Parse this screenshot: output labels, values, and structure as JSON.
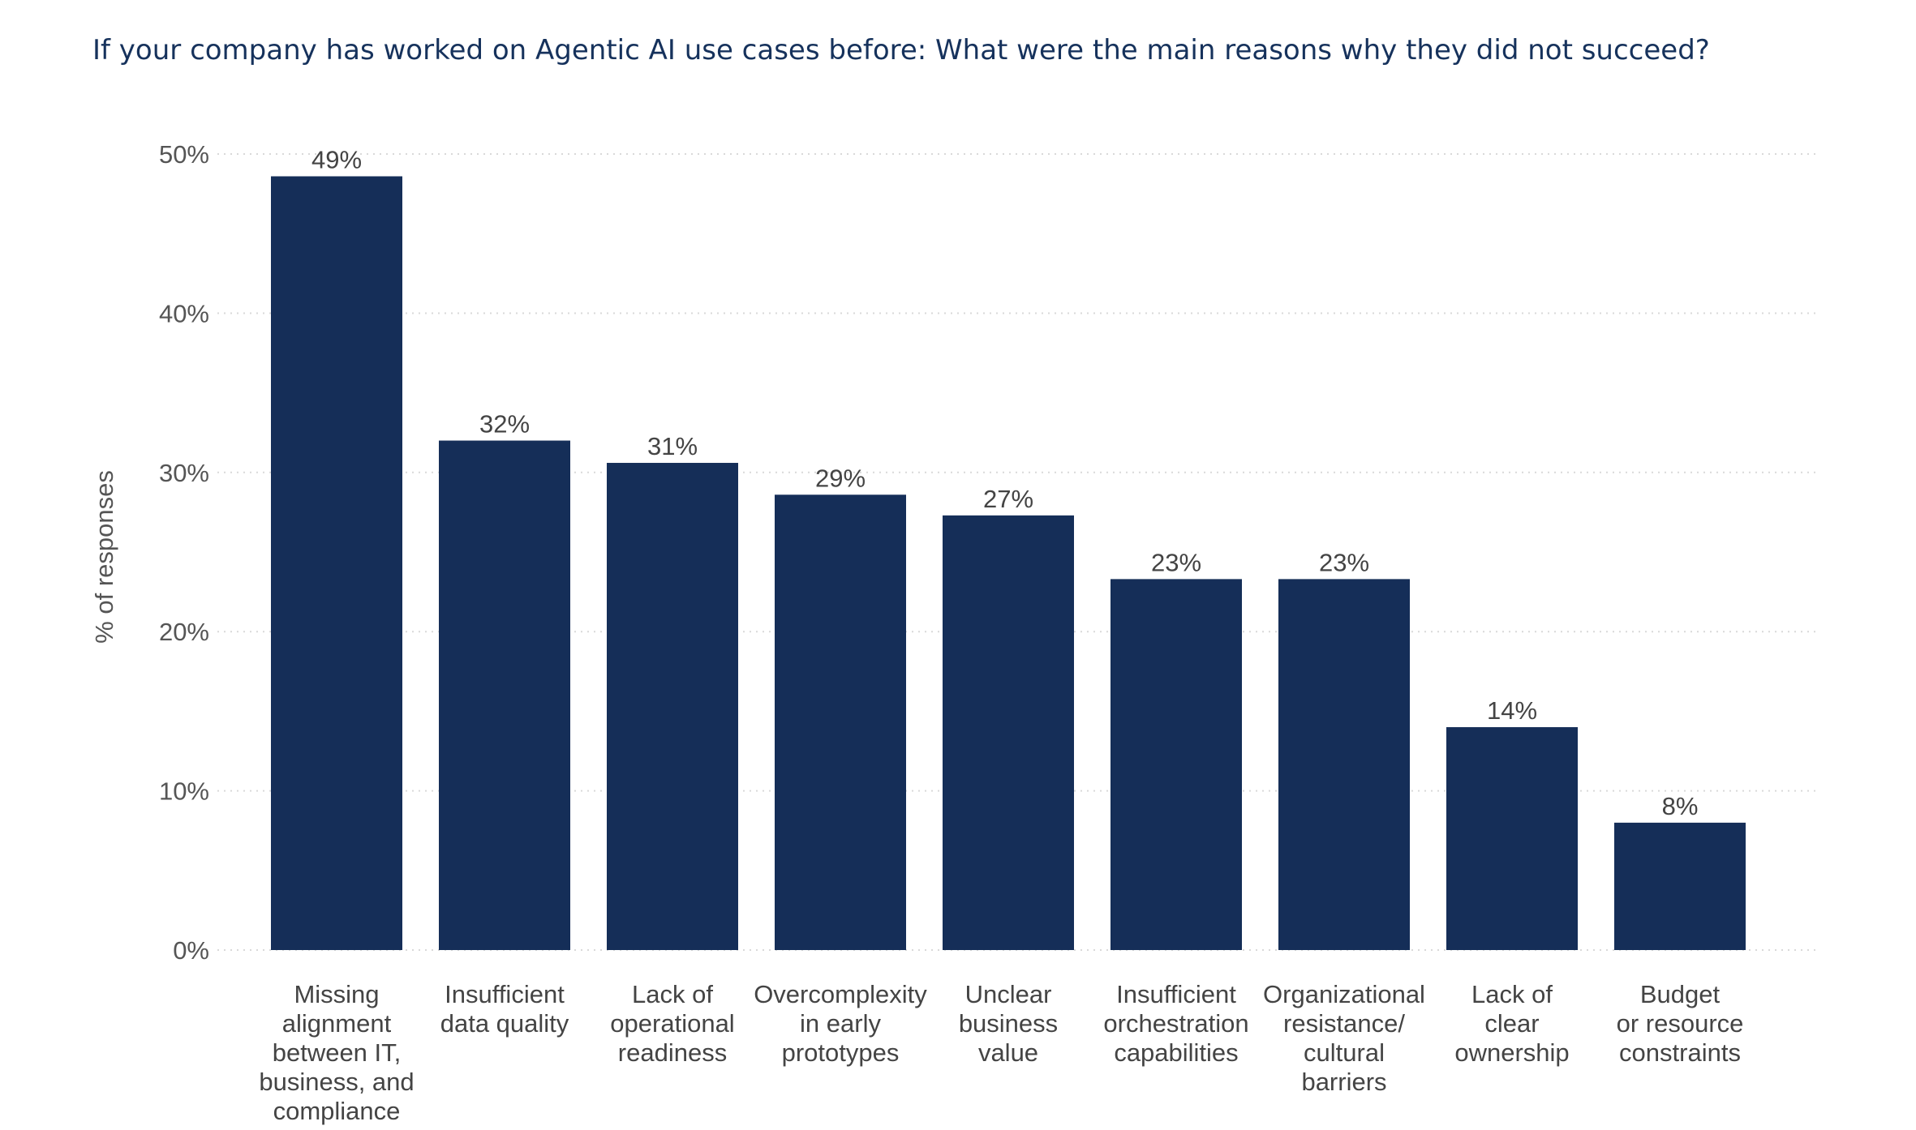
{
  "chart_data": {
    "type": "bar",
    "title": "If your company has worked on Agentic AI use cases before: What were the main reasons why they did not succeed?",
    "xlabel": "",
    "ylabel": "% of responses",
    "ylim": [
      0,
      50
    ],
    "yticks": [
      0,
      10,
      20,
      30,
      40,
      50
    ],
    "ytick_labels": [
      "0%",
      "10%",
      "20%",
      "30%",
      "40%",
      "50%"
    ],
    "grid": true,
    "bar_color": "#152e58",
    "categories": [
      [
        "Missing",
        "alignment",
        "between IT,",
        "business, and",
        "compliance"
      ],
      [
        "Insufficient",
        "data quality"
      ],
      [
        "Lack of",
        "operational",
        "readiness"
      ],
      [
        "Overcomplexity",
        "in early",
        "prototypes"
      ],
      [
        "Unclear",
        "business",
        "value"
      ],
      [
        "Insufficient",
        "orchestration",
        "capabilities"
      ],
      [
        "Organizational",
        "resistance/",
        "cultural",
        "barriers"
      ],
      [
        "Lack of",
        "clear",
        "ownership"
      ],
      [
        "Budget",
        "or resource",
        "constraints"
      ]
    ],
    "values": [
      48.6,
      32.0,
      30.6,
      28.6,
      27.3,
      23.3,
      23.3,
      14.0,
      8.0
    ],
    "value_labels": [
      "49%",
      "32%",
      "31%",
      "29%",
      "27%",
      "23%",
      "23%",
      "14%",
      "8%"
    ]
  }
}
